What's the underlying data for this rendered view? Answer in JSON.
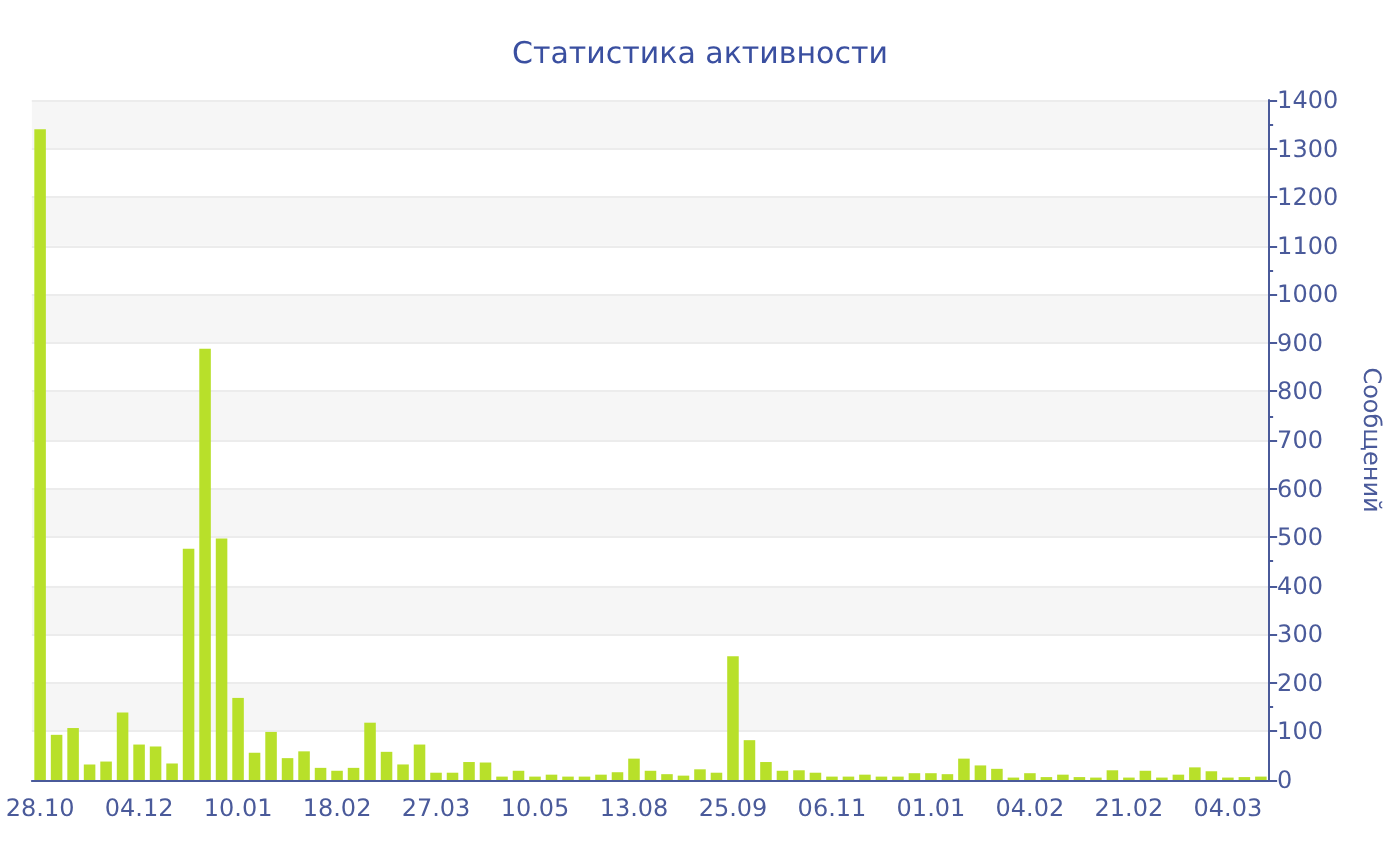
{
  "chart_data": {
    "type": "bar",
    "title": "Статистика активности",
    "ylabel": "Сообщений",
    "categories": [
      "28.10",
      null,
      null,
      null,
      null,
      null,
      "04.12",
      null,
      null,
      null,
      null,
      null,
      "10.01",
      null,
      null,
      null,
      null,
      null,
      "18.02",
      null,
      null,
      null,
      null,
      null,
      "27.03",
      null,
      null,
      null,
      null,
      null,
      "10.05",
      null,
      null,
      null,
      null,
      null,
      "13.08",
      null,
      null,
      null,
      null,
      null,
      "25.09",
      null,
      null,
      null,
      null,
      null,
      "06.11",
      null,
      null,
      null,
      null,
      null,
      "01.01",
      null,
      null,
      null,
      null,
      null,
      "04.02",
      null,
      null,
      null,
      null,
      null,
      "21.02",
      null,
      null,
      null,
      null,
      null,
      "04.03",
      null,
      null
    ],
    "values": [
      1340,
      93,
      107,
      32,
      38,
      139,
      73,
      69,
      34,
      476,
      888,
      497,
      169,
      56,
      99,
      45,
      59,
      25,
      19,
      25,
      118,
      58,
      32,
      73,
      15,
      15,
      37,
      36,
      7,
      19,
      7,
      11,
      7,
      7,
      11,
      16,
      44,
      19,
      12,
      9,
      22,
      15,
      255,
      82,
      37,
      19,
      20,
      15,
      7,
      7,
      11,
      7,
      7,
      14,
      14,
      12,
      44,
      30,
      23,
      5,
      14,
      6,
      11,
      6,
      5,
      20,
      5,
      19,
      5,
      11,
      26,
      18,
      5,
      6,
      7
    ],
    "color": "#b8e02a",
    "ylim": [
      0,
      1400
    ],
    "yticks": [
      0,
      100,
      200,
      300,
      400,
      500,
      600,
      700,
      800,
      900,
      1000,
      1100,
      1200,
      1300,
      1400
    ],
    "grid": "y"
  }
}
